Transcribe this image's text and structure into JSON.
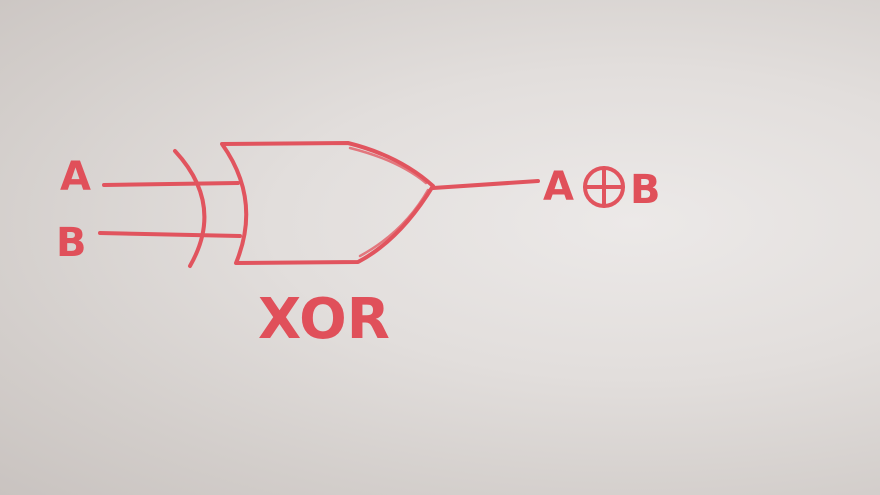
{
  "diagram": {
    "gate_name": "XOR",
    "input_a_label": "A",
    "input_b_label": "B",
    "output_left": "A",
    "output_operator_icon": "xor-circle-plus-icon",
    "output_right": "B"
  },
  "colors": {
    "ink": "#e0505a",
    "paper": "#e6e3e1"
  }
}
